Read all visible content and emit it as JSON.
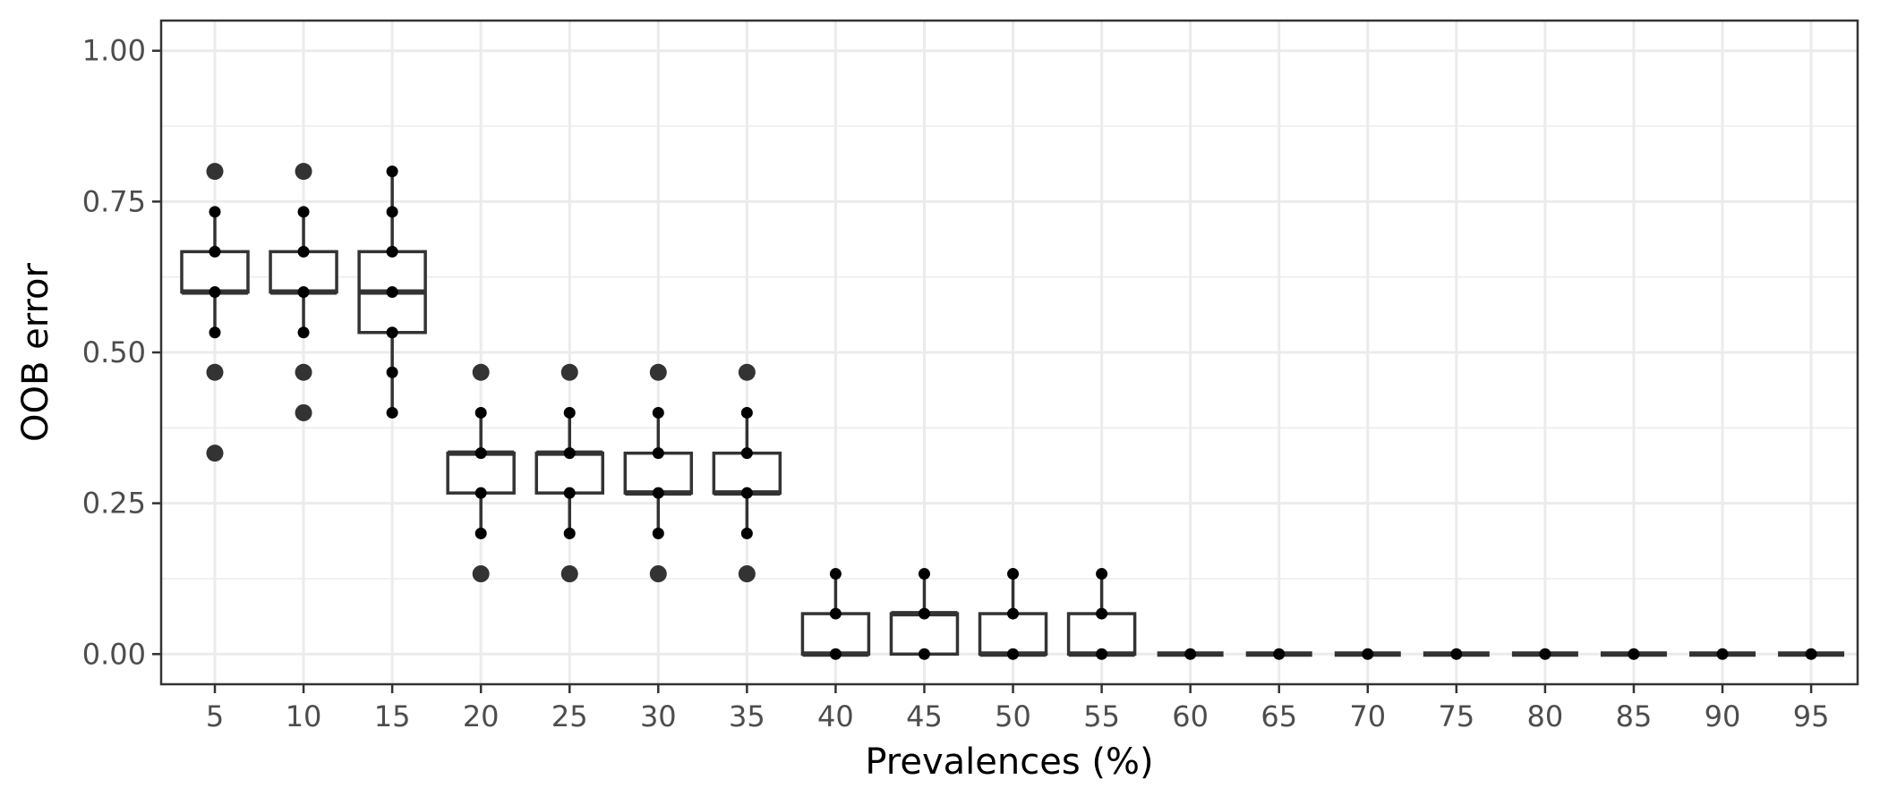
{
  "chart_data": {
    "type": "box",
    "xlabel": "Prevalences (%)",
    "ylabel": "OOB error",
    "ylim": [
      -0.05,
      1.05
    ],
    "yticks": [
      "0.00",
      "0.25",
      "0.50",
      "0.75",
      "1.00"
    ],
    "ytick_values": [
      0,
      0.25,
      0.5,
      0.75,
      1.0
    ],
    "grid": true,
    "categories": [
      "5",
      "10",
      "15",
      "20",
      "25",
      "30",
      "35",
      "40",
      "45",
      "50",
      "55",
      "60",
      "65",
      "70",
      "75",
      "80",
      "85",
      "90",
      "95"
    ],
    "boxes": [
      {
        "q1": 0.6,
        "median": 0.6,
        "q3": 0.667,
        "whisker_low": 0.533,
        "whisker_high": 0.733,
        "points": [
          0.533,
          0.6,
          0.667,
          0.733
        ],
        "outliers": [
          0.8,
          0.467,
          0.333
        ]
      },
      {
        "q1": 0.6,
        "median": 0.6,
        "q3": 0.667,
        "whisker_low": 0.533,
        "whisker_high": 0.733,
        "points": [
          0.533,
          0.6,
          0.667,
          0.733
        ],
        "outliers": [
          0.8,
          0.467,
          0.4
        ]
      },
      {
        "q1": 0.533,
        "median": 0.6,
        "q3": 0.667,
        "whisker_low": 0.4,
        "whisker_high": 0.8,
        "points": [
          0.4,
          0.467,
          0.533,
          0.6,
          0.667,
          0.733,
          0.8
        ],
        "outliers": []
      },
      {
        "q1": 0.267,
        "median": 0.333,
        "q3": 0.333,
        "whisker_low": 0.2,
        "whisker_high": 0.4,
        "points": [
          0.2,
          0.267,
          0.333,
          0.4
        ],
        "outliers": [
          0.467,
          0.133
        ]
      },
      {
        "q1": 0.267,
        "median": 0.333,
        "q3": 0.333,
        "whisker_low": 0.2,
        "whisker_high": 0.4,
        "points": [
          0.2,
          0.267,
          0.333,
          0.4
        ],
        "outliers": [
          0.467,
          0.133
        ]
      },
      {
        "q1": 0.267,
        "median": 0.267,
        "q3": 0.333,
        "whisker_low": 0.2,
        "whisker_high": 0.4,
        "points": [
          0.2,
          0.267,
          0.333,
          0.4
        ],
        "outliers": [
          0.467,
          0.133
        ]
      },
      {
        "q1": 0.267,
        "median": 0.267,
        "q3": 0.333,
        "whisker_low": 0.2,
        "whisker_high": 0.4,
        "points": [
          0.2,
          0.267,
          0.333,
          0.4
        ],
        "outliers": [
          0.467,
          0.133
        ]
      },
      {
        "q1": 0.0,
        "median": 0.0,
        "q3": 0.067,
        "whisker_low": 0.0,
        "whisker_high": 0.133,
        "points": [
          0.0,
          0.067,
          0.133
        ],
        "outliers": []
      },
      {
        "q1": 0.0,
        "median": 0.067,
        "q3": 0.067,
        "whisker_low": 0.0,
        "whisker_high": 0.133,
        "points": [
          0.0,
          0.067,
          0.133
        ],
        "outliers": []
      },
      {
        "q1": 0.0,
        "median": 0.0,
        "q3": 0.067,
        "whisker_low": 0.0,
        "whisker_high": 0.133,
        "points": [
          0.0,
          0.067,
          0.133
        ],
        "outliers": []
      },
      {
        "q1": 0.0,
        "median": 0.0,
        "q3": 0.067,
        "whisker_low": 0.0,
        "whisker_high": 0.133,
        "points": [
          0.0,
          0.067,
          0.133
        ],
        "outliers": []
      },
      {
        "q1": 0,
        "median": 0,
        "q3": 0,
        "whisker_low": 0,
        "whisker_high": 0,
        "points": [
          0
        ],
        "outliers": []
      },
      {
        "q1": 0,
        "median": 0,
        "q3": 0,
        "whisker_low": 0,
        "whisker_high": 0,
        "points": [
          0
        ],
        "outliers": []
      },
      {
        "q1": 0,
        "median": 0,
        "q3": 0,
        "whisker_low": 0,
        "whisker_high": 0,
        "points": [
          0
        ],
        "outliers": []
      },
      {
        "q1": 0,
        "median": 0,
        "q3": 0,
        "whisker_low": 0,
        "whisker_high": 0,
        "points": [
          0
        ],
        "outliers": []
      },
      {
        "q1": 0,
        "median": 0,
        "q3": 0,
        "whisker_low": 0,
        "whisker_high": 0,
        "points": [
          0
        ],
        "outliers": []
      },
      {
        "q1": 0,
        "median": 0,
        "q3": 0,
        "whisker_low": 0,
        "whisker_high": 0,
        "points": [
          0
        ],
        "outliers": []
      },
      {
        "q1": 0,
        "median": 0,
        "q3": 0,
        "whisker_low": 0,
        "whisker_high": 0,
        "points": [
          0
        ],
        "outliers": []
      },
      {
        "q1": 0,
        "median": 0,
        "q3": 0,
        "whisker_low": 0,
        "whisker_high": 0,
        "points": [
          0
        ],
        "outliers": []
      }
    ],
    "colors": {
      "box_stroke": "#333333",
      "box_fill": "#ffffff",
      "point": "#000000",
      "outlier": "#333333",
      "grid": "#ebebeb",
      "panel_border": "#333333"
    }
  }
}
